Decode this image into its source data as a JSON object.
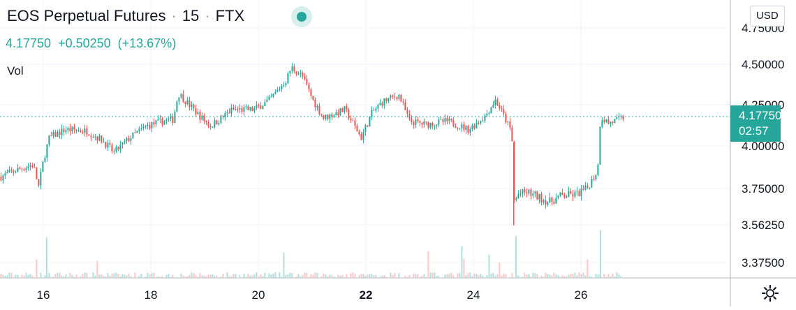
{
  "header": {
    "symbol": "EOS Perpetual Futures",
    "separator": "·",
    "interval": "15",
    "exchange": "FTX"
  },
  "price_line": {
    "last": "4.17750",
    "change": "+0.50250",
    "change_pct": "(+13.67%)"
  },
  "volume_label": "Vol",
  "currency_button": "USD",
  "price_tag": {
    "price": "4.17750",
    "countdown": "02:57"
  },
  "icons": {
    "settings": "gear-icon",
    "live": "live-indicator-icon"
  },
  "colors": {
    "up": "#26a69a",
    "down": "#ef5350",
    "grid": "#f0f3fa",
    "text": "#131722"
  },
  "chart_data": {
    "type": "candlestick",
    "x_ticks": [
      "16",
      "18",
      "20",
      "22",
      "24",
      "26"
    ],
    "x_tick_days": [
      16,
      18,
      20,
      22,
      24,
      26
    ],
    "bold_tick": "22",
    "y_ticks": [
      "4.75000",
      "4.50000",
      "4.25000",
      "4.00000",
      "3.75000",
      "3.56250",
      "3.37500"
    ],
    "last_price": 4.1775,
    "xlim": [
      15.2,
      26.8
    ],
    "series": [
      {
        "values_note": "approximate trajectory (day, price)",
        "x": [
          15.2,
          15.5,
          15.8,
          15.9,
          16.0,
          16.1,
          16.4,
          16.8,
          17.1,
          17.3,
          17.6,
          17.9,
          18.2,
          18.4,
          18.5,
          18.9,
          19.1,
          19.5,
          19.9,
          20.2,
          20.5,
          20.6,
          20.8,
          21.0,
          21.2,
          21.6,
          21.9,
          22.1,
          22.3,
          22.6,
          22.8,
          23.1,
          23.5,
          23.9,
          24.2,
          24.4,
          24.6,
          24.7,
          24.75,
          24.8,
          25.0,
          25.4,
          25.6,
          25.9,
          26.1,
          26.3,
          26.35,
          26.5,
          26.7,
          26.8
        ],
        "values": [
          3.82,
          3.86,
          3.89,
          3.76,
          3.93,
          4.05,
          4.1,
          4.09,
          4.03,
          3.96,
          4.05,
          4.12,
          4.15,
          4.16,
          4.32,
          4.18,
          4.12,
          4.22,
          4.22,
          4.28,
          4.4,
          4.48,
          4.43,
          4.28,
          4.17,
          4.22,
          4.05,
          4.2,
          4.27,
          4.31,
          4.15,
          4.13,
          4.15,
          4.1,
          4.18,
          4.28,
          4.15,
          4.08,
          3.65,
          3.72,
          3.73,
          3.68,
          3.71,
          3.72,
          3.75,
          3.86,
          4.18,
          4.14,
          4.16,
          4.1775
        ]
      }
    ]
  }
}
